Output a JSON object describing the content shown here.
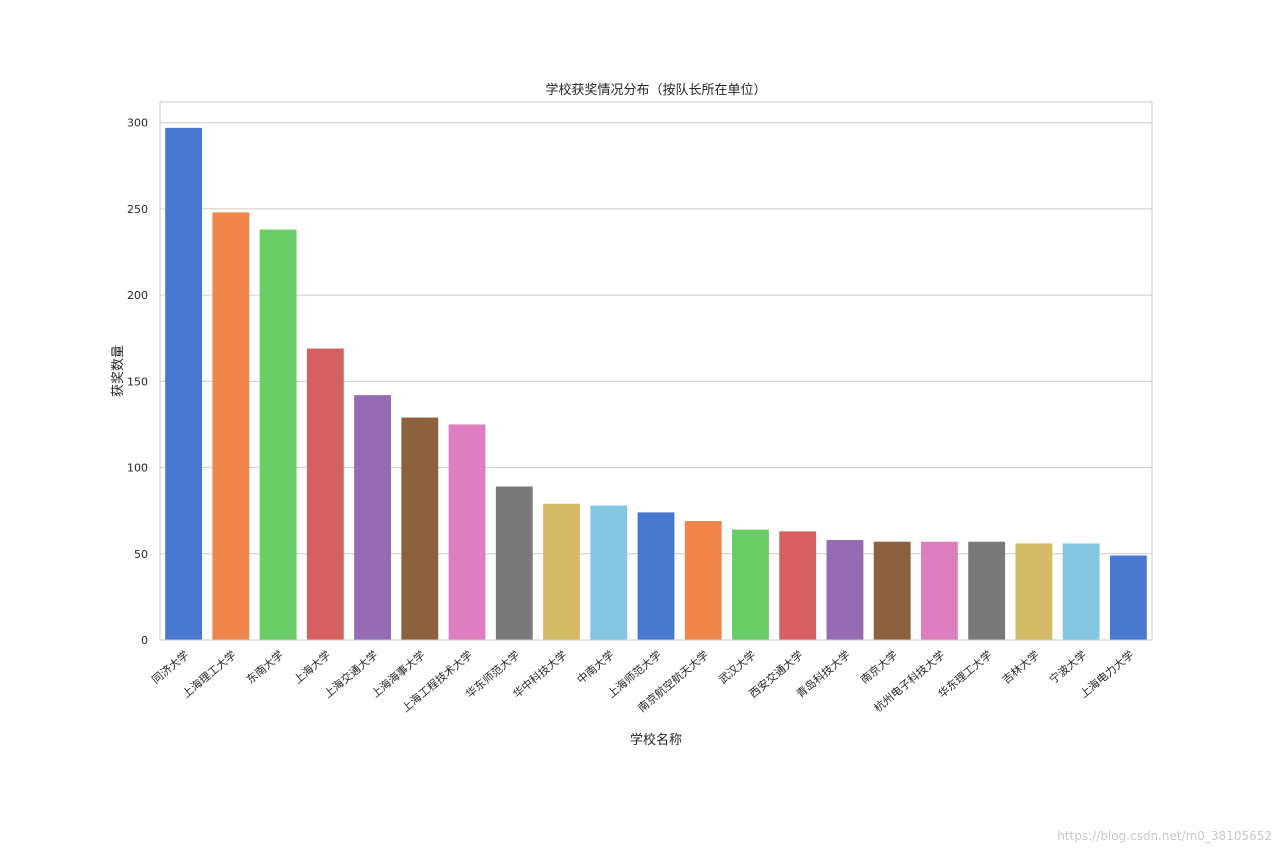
{
  "chart_data": {
    "type": "bar",
    "title": "学校获奖情况分布（按队长所在单位）",
    "xlabel": "学校名称",
    "ylabel": "获奖数量",
    "ylim": [
      0,
      312
    ],
    "yticks": [
      0,
      50,
      100,
      150,
      200,
      250,
      300
    ],
    "grid": true,
    "categories": [
      "同济大学",
      "上海理工大学",
      "东南大学",
      "上海大学",
      "上海交通大学",
      "上海海事大学",
      "上海工程技术大学",
      "华东师范大学",
      "华中科技大学",
      "中南大学",
      "上海师范大学",
      "南京航空航天大学",
      "武汉大学",
      "西安交通大学",
      "青岛科技大学",
      "南京大学",
      "杭州电子科技大学",
      "华东理工大学",
      "吉林大学",
      "宁波大学",
      "上海电力大学"
    ],
    "values": [
      297,
      248,
      238,
      169,
      142,
      129,
      125,
      89,
      79,
      78,
      74,
      69,
      64,
      63,
      58,
      57,
      57,
      57,
      56,
      56,
      49
    ],
    "palette": [
      "#4878d0",
      "#ee854a",
      "#6acc64",
      "#d65f5f",
      "#956cb4",
      "#8c613c",
      "#dc7ec0",
      "#797979",
      "#d5bb67",
      "#82c6e2"
    ]
  },
  "watermark": "https://blog.csdn.net/m0_38105652"
}
